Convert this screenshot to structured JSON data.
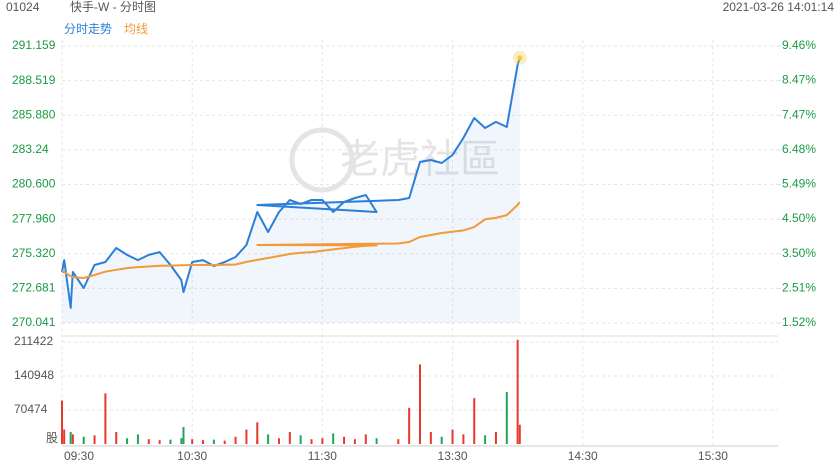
{
  "header": {
    "code": "01024",
    "title": "快手-W - 分时图",
    "datetime": "2021-03-26 14:01:14"
  },
  "watermark": "老虎社區",
  "chart_data": {
    "type": "line",
    "x": [
      "09:30",
      "09:31",
      "09:34",
      "09:35",
      "09:40",
      "09:45",
      "09:50",
      "09:55",
      "10:00",
      "10:05",
      "10:10",
      "10:15",
      "10:20",
      "10:25",
      "10:26",
      "10:30",
      "10:35",
      "10:40",
      "10:45",
      "10:50",
      "10:55",
      "11:00",
      "11:05",
      "11:10",
      "11:15",
      "11:20",
      "11:25",
      "11:30",
      "11:35",
      "11:40",
      "11:45",
      "11:50",
      "11:55",
      "12:00",
      "13:05",
      "13:10",
      "13:15",
      "13:20",
      "13:25",
      "13:30",
      "13:35",
      "13:40",
      "13:45",
      "13:50",
      "13:55",
      "14:00",
      "14:01"
    ],
    "series": [
      {
        "name": "分时走势",
        "color": "#2b7fd8",
        "values": [
          273.93,
          274.84,
          271.19,
          273.93,
          272.71,
          274.46,
          274.69,
          275.76,
          275.23,
          274.84,
          275.23,
          275.45,
          274.46,
          273.32,
          272.4,
          274.69,
          274.84,
          274.39,
          274.69,
          275.07,
          275.99,
          278.5,
          276.98,
          278.5,
          279.42,
          279.11,
          279.42,
          279.42,
          278.5,
          279.27,
          279.57,
          279.8,
          278.5,
          279.04,
          279.42,
          279.57,
          282.32,
          282.47,
          282.24,
          282.85,
          284.15,
          285.67,
          284.91,
          285.37,
          284.98,
          289.71,
          290.25
        ]
      },
      {
        "name": "均线",
        "color": "#f29a38",
        "values": [
          273.93,
          273.93,
          273.6,
          273.55,
          273.47,
          273.7,
          273.95,
          274.1,
          274.23,
          274.3,
          274.35,
          274.4,
          274.42,
          274.44,
          274.44,
          274.46,
          274.46,
          274.46,
          274.48,
          274.5,
          274.7,
          274.85,
          275.0,
          275.15,
          275.3,
          275.4,
          275.45,
          275.55,
          275.65,
          275.75,
          275.85,
          275.92,
          275.96,
          275.99,
          276.1,
          276.22,
          276.6,
          276.75,
          276.9,
          277.0,
          277.1,
          277.35,
          277.95,
          278.05,
          278.27,
          279.04,
          279.27
        ]
      }
    ],
    "xlim": [
      "09:30",
      "16:00"
    ],
    "xticks": [
      "09:30",
      "10:30",
      "11:30",
      "13:30",
      "14:30",
      "15:30"
    ],
    "ylim": [
      270.041,
      291.159
    ],
    "yticks": [
      291.159,
      288.519,
      {
        "value": 285.88,
        "label": "285.880"
      },
      283.24,
      {
        "value": 280.6,
        "label": "280.600"
      },
      {
        "value": 277.96,
        "label": "277.960"
      },
      {
        "value": 275.32,
        "label": "275.320"
      },
      272.681,
      270.041
    ],
    "y2lim": [
      1.52,
      9.46
    ],
    "y2ticks": [
      {
        "value": 9.46,
        "label": "9.46%"
      },
      {
        "value": 8.47,
        "label": "8.47%"
      },
      {
        "value": 7.47,
        "label": "7.47%"
      },
      {
        "value": 6.48,
        "label": "6.48%"
      },
      {
        "value": 5.49,
        "label": "5.49%"
      },
      {
        "value": 4.5,
        "label": "4.50%"
      },
      {
        "value": 3.5,
        "label": "3.50%"
      },
      {
        "value": 2.51,
        "label": "2.51%"
      },
      {
        "value": 1.52,
        "label": "1.52%"
      }
    ],
    "grid": true,
    "volume": {
      "unit": "股",
      "up_color": "#e8392e",
      "down_color": "#1fa45a",
      "ylim": [
        0,
        220000
      ],
      "yticks": [
        211422,
        140948,
        70474
      ],
      "values": [
        90000,
        30000,
        25000,
        20000,
        15000,
        18000,
        105000,
        25000,
        12000,
        20000,
        10000,
        8000,
        9000,
        12000,
        35000,
        10000,
        8000,
        9000,
        7000,
        15000,
        30000,
        45000,
        20000,
        12000,
        25000,
        18000,
        10000,
        12000,
        22000,
        15000,
        10000,
        20000,
        12000,
        8000,
        10000,
        75000,
        165000,
        25000,
        15000,
        30000,
        20000,
        95000,
        18000,
        25000,
        108000,
        216000,
        40000
      ]
    }
  }
}
